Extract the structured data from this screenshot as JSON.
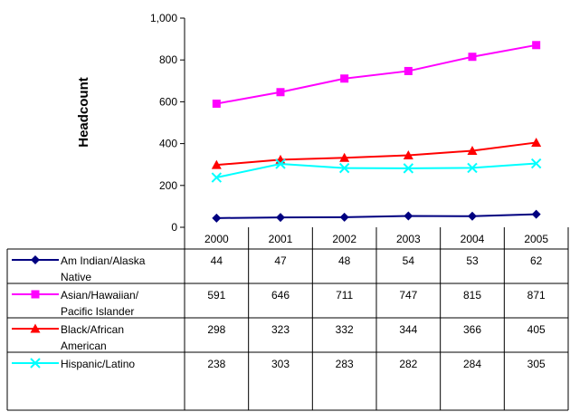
{
  "chart_data": {
    "type": "line",
    "title": "",
    "xlabel": "",
    "ylabel": "Headcount",
    "ylim": [
      0,
      1000
    ],
    "yticks": [
      "0",
      "200",
      "400",
      "600",
      "800",
      "1,000"
    ],
    "yticks_values": [
      0,
      200,
      400,
      600,
      800,
      1000
    ],
    "categories": [
      "2000",
      "2001",
      "2002",
      "2003",
      "2004",
      "2005"
    ],
    "grid": false,
    "legend": "data-table",
    "series": [
      {
        "name_lines": [
          "Am Indian/Alaska",
          "Native"
        ],
        "color": "#000080",
        "marker": "diamond",
        "values": [
          44,
          47,
          48,
          54,
          53,
          62
        ]
      },
      {
        "name_lines": [
          "Asian/Hawaiian/",
          "Pacific Islander"
        ],
        "color": "#FF00FF",
        "marker": "square",
        "values": [
          591,
          646,
          711,
          747,
          815,
          871
        ]
      },
      {
        "name_lines": [
          "Black/African",
          "American"
        ],
        "color": "#FF0000",
        "marker": "triangle",
        "values": [
          298,
          323,
          332,
          344,
          366,
          405
        ]
      },
      {
        "name_lines": [
          "Hispanic/Latino"
        ],
        "color": "#00FFFF",
        "marker": "x",
        "values": [
          238,
          303,
          283,
          282,
          284,
          305
        ]
      }
    ]
  }
}
